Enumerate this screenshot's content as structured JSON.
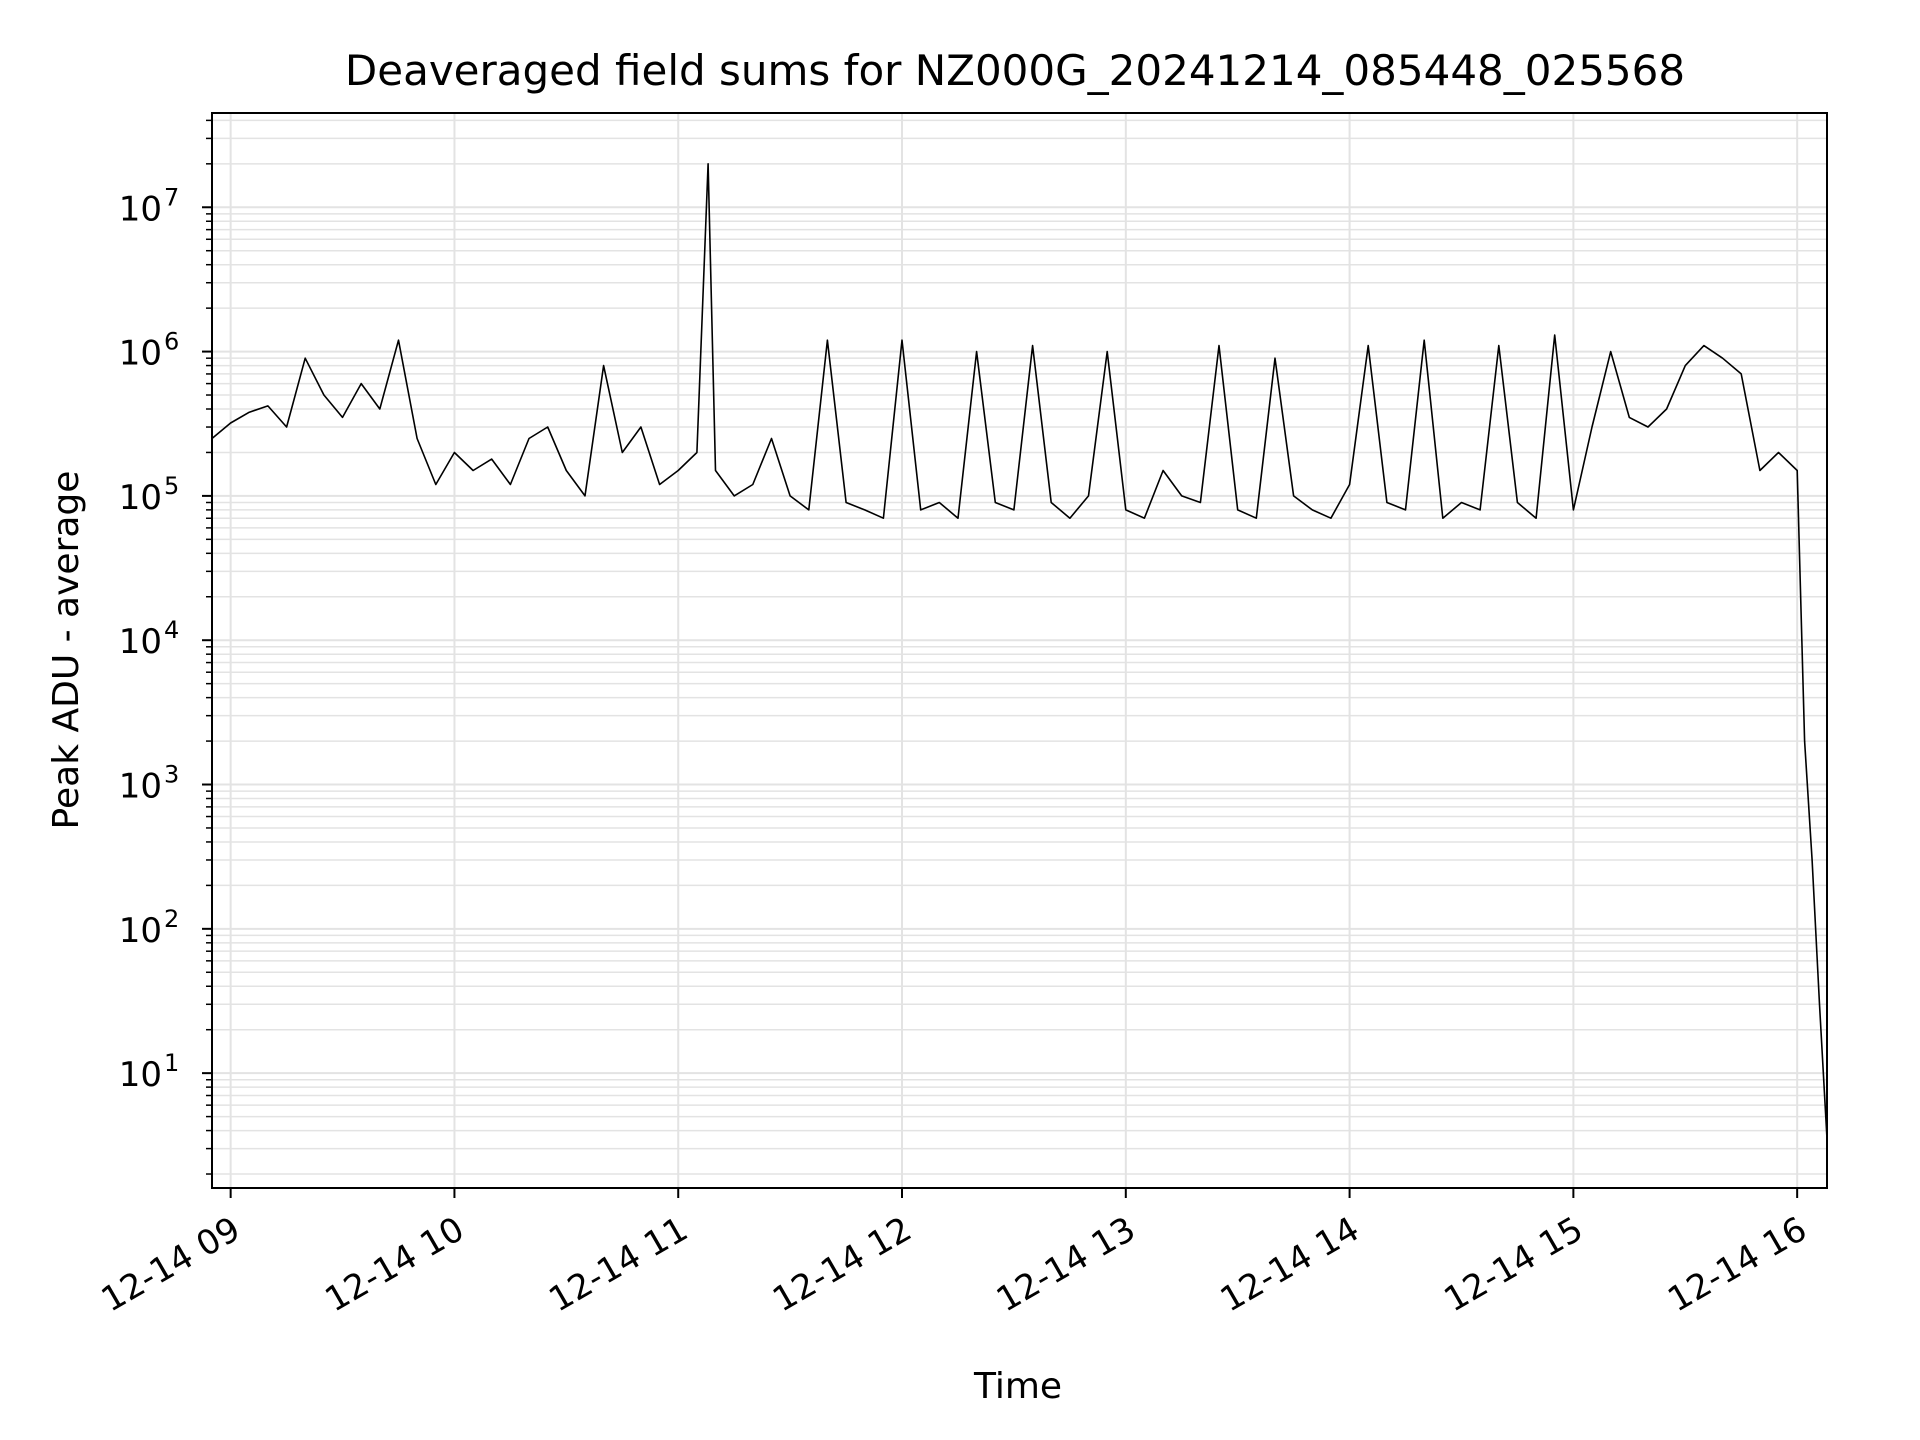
{
  "chart_data": {
    "type": "line",
    "title": "Deaveraged field sums for NZ000G_20241214_085448_025568",
    "xlabel": "Time",
    "ylabel": "Peak ADU - average",
    "y_scale": "log",
    "ylim": [
      1.6,
      45000000
    ],
    "xlim": [
      "2024-12-14 08:55",
      "2024-12-14 16:08"
    ],
    "grid": true,
    "line_color": "#000000",
    "grid_color": "#e3e3e3",
    "x_ticks": [
      {
        "value": "2024-12-14 09:00",
        "label": "12-14 09"
      },
      {
        "value": "2024-12-14 10:00",
        "label": "12-14 10"
      },
      {
        "value": "2024-12-14 11:00",
        "label": "12-14 11"
      },
      {
        "value": "2024-12-14 12:00",
        "label": "12-14 12"
      },
      {
        "value": "2024-12-14 13:00",
        "label": "12-14 13"
      },
      {
        "value": "2024-12-14 14:00",
        "label": "12-14 14"
      },
      {
        "value": "2024-12-14 15:00",
        "label": "12-14 15"
      },
      {
        "value": "2024-12-14 16:00",
        "label": "12-14 16"
      }
    ],
    "y_ticks": [
      {
        "value": 10,
        "base": "10",
        "exp": "1"
      },
      {
        "value": 100,
        "base": "10",
        "exp": "2"
      },
      {
        "value": 1000,
        "base": "10",
        "exp": "3"
      },
      {
        "value": 10000,
        "base": "10",
        "exp": "4"
      },
      {
        "value": 100000,
        "base": "10",
        "exp": "5"
      },
      {
        "value": 1000000,
        "base": "10",
        "exp": "6"
      },
      {
        "value": 10000000,
        "base": "10",
        "exp": "7"
      }
    ],
    "series": [
      {
        "x": [
          "2024-12-14 08:55",
          "2024-12-14 09:00",
          "2024-12-14 09:05",
          "2024-12-14 09:10",
          "2024-12-14 09:15",
          "2024-12-14 09:20",
          "2024-12-14 09:25",
          "2024-12-14 09:30",
          "2024-12-14 09:35",
          "2024-12-14 09:40",
          "2024-12-14 09:45",
          "2024-12-14 09:50",
          "2024-12-14 09:55",
          "2024-12-14 10:00",
          "2024-12-14 10:05",
          "2024-12-14 10:10",
          "2024-12-14 10:15",
          "2024-12-14 10:20",
          "2024-12-14 10:25",
          "2024-12-14 10:30",
          "2024-12-14 10:35",
          "2024-12-14 10:40",
          "2024-12-14 10:45",
          "2024-12-14 10:50",
          "2024-12-14 10:55",
          "2024-12-14 11:00",
          "2024-12-14 11:05",
          "2024-12-14 11:08",
          "2024-12-14 11:10",
          "2024-12-14 11:15",
          "2024-12-14 11:20",
          "2024-12-14 11:25",
          "2024-12-14 11:30",
          "2024-12-14 11:35",
          "2024-12-14 11:40",
          "2024-12-14 11:45",
          "2024-12-14 11:50",
          "2024-12-14 11:55",
          "2024-12-14 12:00",
          "2024-12-14 12:05",
          "2024-12-14 12:10",
          "2024-12-14 12:15",
          "2024-12-14 12:20",
          "2024-12-14 12:25",
          "2024-12-14 12:30",
          "2024-12-14 12:35",
          "2024-12-14 12:40",
          "2024-12-14 12:45",
          "2024-12-14 12:50",
          "2024-12-14 12:55",
          "2024-12-14 13:00",
          "2024-12-14 13:05",
          "2024-12-14 13:10",
          "2024-12-14 13:15",
          "2024-12-14 13:20",
          "2024-12-14 13:25",
          "2024-12-14 13:30",
          "2024-12-14 13:35",
          "2024-12-14 13:40",
          "2024-12-14 13:45",
          "2024-12-14 13:50",
          "2024-12-14 13:55",
          "2024-12-14 14:00",
          "2024-12-14 14:05",
          "2024-12-14 14:10",
          "2024-12-14 14:15",
          "2024-12-14 14:20",
          "2024-12-14 14:25",
          "2024-12-14 14:30",
          "2024-12-14 14:35",
          "2024-12-14 14:40",
          "2024-12-14 14:45",
          "2024-12-14 14:50",
          "2024-12-14 14:55",
          "2024-12-14 15:00",
          "2024-12-14 15:05",
          "2024-12-14 15:10",
          "2024-12-14 15:15",
          "2024-12-14 15:20",
          "2024-12-14 15:25",
          "2024-12-14 15:30",
          "2024-12-14 15:35",
          "2024-12-14 15:40",
          "2024-12-14 15:45",
          "2024-12-14 15:50",
          "2024-12-14 15:55",
          "2024-12-14 16:00",
          "2024-12-14 16:02",
          "2024-12-14 16:04",
          "2024-12-14 16:06",
          "2024-12-14 16:08"
        ],
        "y": [
          250000,
          320000,
          380000,
          420000,
          300000,
          900000,
          500000,
          350000,
          600000,
          400000,
          1200000,
          250000,
          120000,
          200000,
          150000,
          180000,
          120000,
          250000,
          300000,
          150000,
          100000,
          800000,
          200000,
          300000,
          120000,
          150000,
          200000,
          20000000,
          150000,
          100000,
          120000,
          250000,
          100000,
          80000,
          1200000,
          90000,
          80000,
          70000,
          1200000,
          80000,
          90000,
          70000,
          1000000,
          90000,
          80000,
          1100000,
          90000,
          70000,
          100000,
          1000000,
          80000,
          70000,
          150000,
          100000,
          90000,
          1100000,
          80000,
          70000,
          900000,
          100000,
          80000,
          70000,
          120000,
          1100000,
          90000,
          80000,
          1200000,
          70000,
          90000,
          80000,
          1100000,
          90000,
          70000,
          1300000,
          80000,
          300000,
          1000000,
          350000,
          300000,
          400000,
          800000,
          1100000,
          900000,
          700000,
          150000,
          200000,
          150000,
          2000,
          300,
          30,
          3.5
        ]
      }
    ]
  }
}
